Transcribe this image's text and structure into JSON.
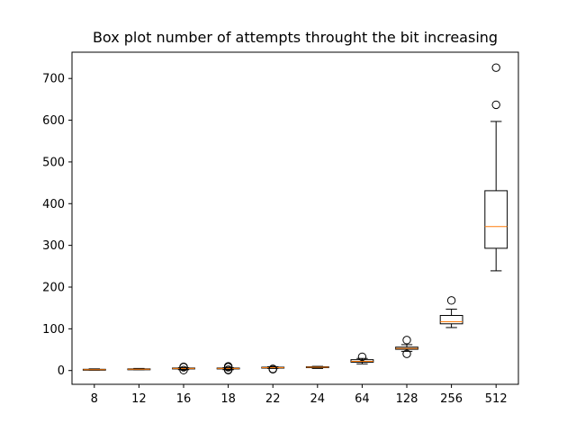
{
  "chart_data": {
    "type": "box",
    "title": "Box plot number of attempts throught the bit increasing",
    "xlabel": "",
    "ylabel": "",
    "ylim": [
      -33,
      763
    ],
    "yticks": [
      0,
      100,
      200,
      300,
      400,
      500,
      600,
      700
    ],
    "grid": false,
    "colors": {
      "box": "#000000",
      "median": "#ff7f0e",
      "axes": "#000000",
      "background": "#ffffff"
    },
    "categories": [
      "8",
      "12",
      "16",
      "18",
      "22",
      "24",
      "64",
      "128",
      "256",
      "512"
    ],
    "boxes": [
      {
        "label": "8",
        "whisker_low": 1,
        "q1": 2,
        "median": 2,
        "q3": 3,
        "whisker_high": 4,
        "fliers": []
      },
      {
        "label": "12",
        "whisker_low": 2,
        "q1": 3,
        "median": 3,
        "q3": 4,
        "whisker_high": 5,
        "fliers": []
      },
      {
        "label": "16",
        "whisker_low": 2,
        "q1": 4,
        "median": 5,
        "q3": 6,
        "whisker_high": 7,
        "fliers": [
          1,
          8,
          9
        ]
      },
      {
        "label": "18",
        "whisker_low": 2,
        "q1": 4,
        "median": 5,
        "q3": 6,
        "whisker_high": 7,
        "fliers": [
          1,
          2,
          8,
          10
        ]
      },
      {
        "label": "22",
        "whisker_low": 5,
        "q1": 6,
        "median": 7,
        "q3": 8,
        "whisker_high": 9,
        "fliers": [
          3,
          4
        ]
      },
      {
        "label": "24",
        "whisker_low": 5,
        "q1": 7,
        "median": 8,
        "q3": 9,
        "whisker_high": 10,
        "fliers": []
      },
      {
        "label": "64",
        "whisker_low": 16,
        "q1": 20,
        "median": 22,
        "q3": 26,
        "whisker_high": 29,
        "fliers": [
          33
        ]
      },
      {
        "label": "128",
        "whisker_low": 46,
        "q1": 51,
        "median": 53,
        "q3": 56,
        "whisker_high": 62,
        "fliers": [
          40,
          73
        ]
      },
      {
        "label": "256",
        "whisker_low": 103,
        "q1": 112,
        "median": 117,
        "q3": 132,
        "whisker_high": 147,
        "fliers": [
          168
        ]
      },
      {
        "label": "512",
        "whisker_low": 239,
        "q1": 293,
        "median": 345,
        "q3": 431,
        "whisker_high": 597,
        "fliers": [
          637,
          726
        ]
      }
    ]
  }
}
